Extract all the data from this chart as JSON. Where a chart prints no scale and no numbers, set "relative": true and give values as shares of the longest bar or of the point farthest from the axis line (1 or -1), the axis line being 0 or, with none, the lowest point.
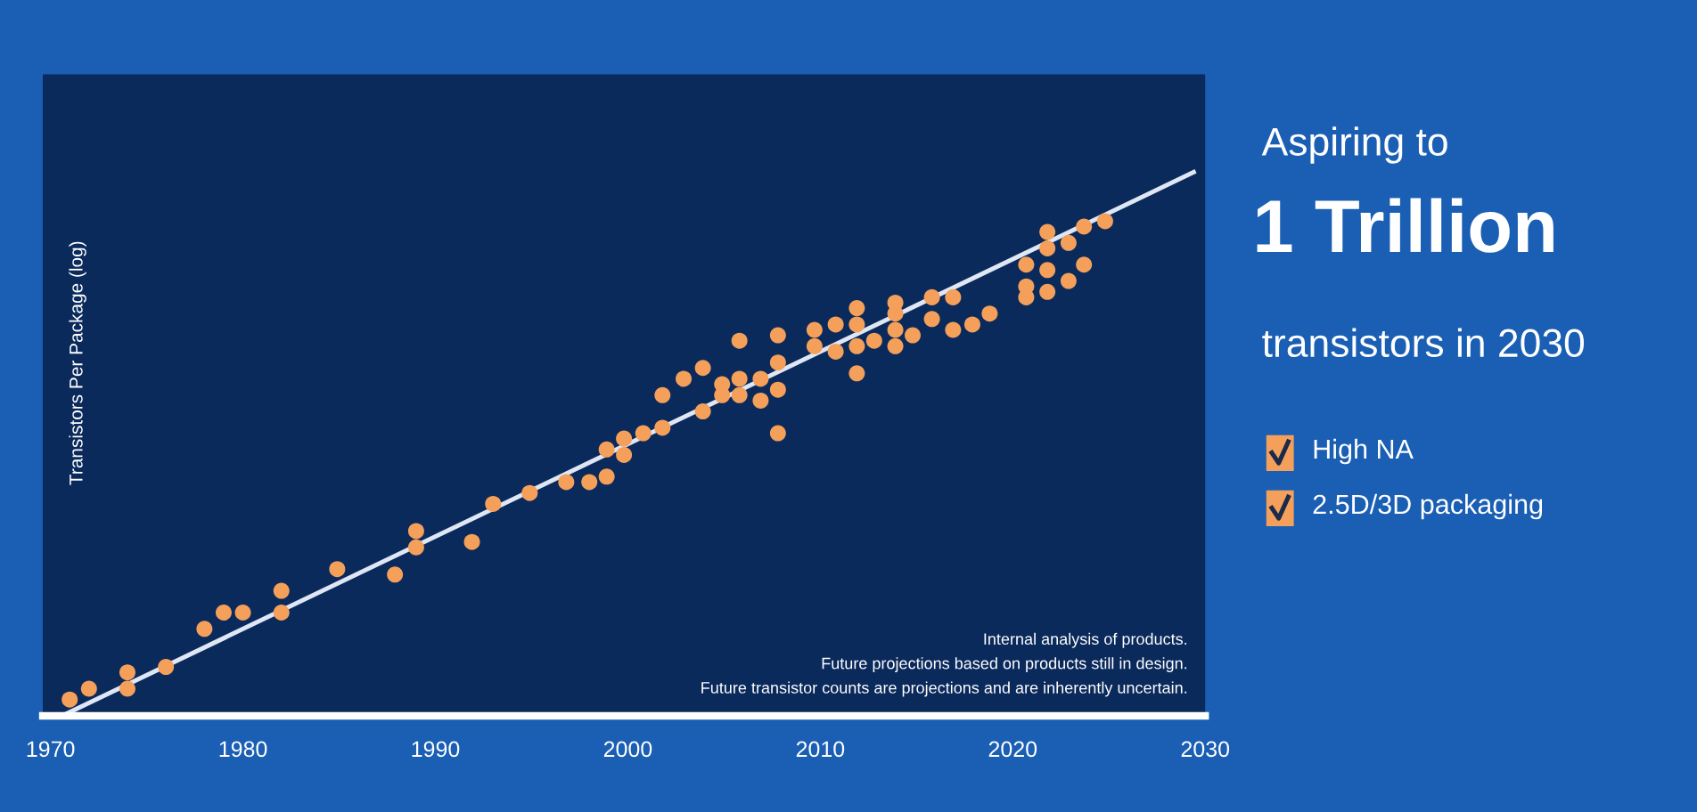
{
  "chart_data": [
    {
      "type": "scatter",
      "ylabel": "Transistors Per Package (log)",
      "relative": true,
      "xlim": [
        1969.6,
        2030.0
      ],
      "xticks": [
        1970,
        1980,
        1990,
        2000,
        2010,
        2020,
        2030
      ],
      "grid": false,
      "legend": false,
      "annotations": [
        "Internal analysis of products.",
        "Future projections based on products still in design.",
        "Future transistor counts are projections and are inherently uncertain."
      ],
      "series": [
        {
          "type": "scatter",
          "color": "#f5a05a",
          "marker": "circle",
          "x": [
            1971.0,
            1972.0,
            1974.0,
            1974.0,
            1976.0,
            1978.0,
            1979.0,
            1980.0,
            1982.0,
            1982.0,
            1984.9,
            1987.9,
            1989.0,
            1989.0,
            1991.9,
            1993.0,
            1994.9,
            1996.8,
            1998.0,
            1998.9,
            1998.9,
            1999.8,
            1999.8,
            2000.8,
            2001.8,
            2001.8,
            2002.9,
            2003.9,
            2003.9,
            2004.9,
            2004.9,
            2005.8,
            2005.8,
            2005.8,
            2006.9,
            2006.9,
            2007.8,
            2007.8,
            2007.8,
            2007.8,
            2009.7,
            2009.7,
            2010.8,
            2010.8,
            2011.9,
            2011.9,
            2011.9,
            2011.9,
            2012.8,
            2013.9,
            2013.9,
            2013.9,
            2013.9,
            2014.8,
            2015.8,
            2015.8,
            2016.9,
            2016.9,
            2017.9,
            2018.8,
            2020.7,
            2020.7,
            2020.7,
            2021.8,
            2021.8,
            2021.8,
            2021.8,
            2022.9,
            2022.9,
            2023.7,
            2023.7,
            2024.8
          ],
          "values": [
            0.03,
            0.05,
            0.08,
            0.05,
            0.09,
            0.16,
            0.19,
            0.19,
            0.23,
            0.19,
            0.27,
            0.26,
            0.34,
            0.31,
            0.32,
            0.39,
            0.41,
            0.43,
            0.43,
            0.44,
            0.49,
            0.48,
            0.51,
            0.52,
            0.53,
            0.59,
            0.62,
            0.64,
            0.56,
            0.59,
            0.61,
            0.62,
            0.59,
            0.69,
            0.62,
            0.58,
            0.7,
            0.65,
            0.6,
            0.52,
            0.71,
            0.68,
            0.72,
            0.67,
            0.75,
            0.72,
            0.68,
            0.63,
            0.69,
            0.76,
            0.74,
            0.71,
            0.68,
            0.7,
            0.77,
            0.73,
            0.77,
            0.71,
            0.72,
            0.74,
            0.83,
            0.79,
            0.77,
            0.89,
            0.86,
            0.82,
            0.78,
            0.87,
            0.8,
            0.9,
            0.83,
            0.91
          ]
        },
        {
          "type": "line",
          "color": "#dfe7f5",
          "marker": "none",
          "x": [
            1970.6,
            2029.4
          ],
          "values": [
            0,
            1
          ]
        }
      ]
    },
    {
      "type": "other",
      "title": "Aspiring to",
      "subtitle": "1 Trillion",
      "annotations": [
        "transistors in 2030",
        "High NA",
        "2.5D/3D packaging"
      ]
    }
  ]
}
